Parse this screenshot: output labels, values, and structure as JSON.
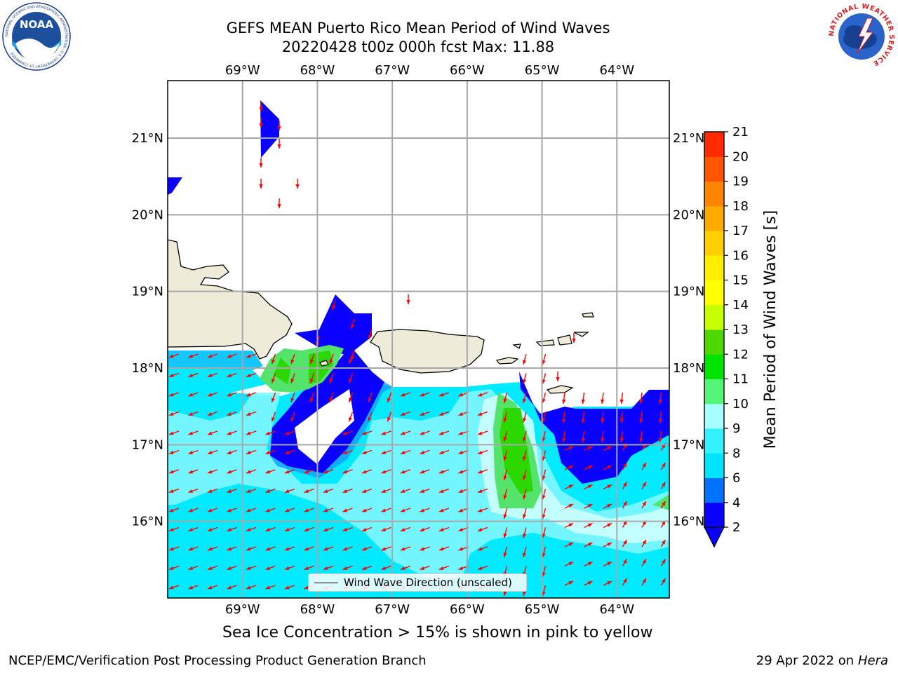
{
  "header": {
    "title_line1": "GEFS MEAN Puerto Rico Mean Period of Wind Waves",
    "title_line2": "20220428 t00z 000h fcst    Max: 11.88"
  },
  "logos": {
    "left": {
      "name": "NOAA",
      "text": "NOAA",
      "ring_text": "NATIONAL OCEANIC AND ATMOSPHERIC ADMINISTRATION · U.S. DEPARTMENT OF COMMERCE"
    },
    "right": {
      "name": "National Weather Service",
      "ring_text": "NATIONAL WEATHER SERVICE"
    }
  },
  "map": {
    "lon_labels": [
      "69°W",
      "68°W",
      "67°W",
      "66°W",
      "65°W",
      "64°W"
    ],
    "lat_labels": [
      "21°N",
      "20°N",
      "19°N",
      "18°N",
      "17°N",
      "16°N"
    ],
    "lon_values": [
      -69,
      -68,
      -67,
      -66,
      -65,
      -64
    ],
    "lat_values": [
      21,
      20,
      19,
      18,
      17,
      16
    ],
    "extent": {
      "lon_min": -70.0,
      "lon_max": -63.3,
      "lat_min": 15.0,
      "lat_max": 21.75
    },
    "legend_label": "Wind Wave Direction (unscaled)",
    "arrow_color": "#ff0000",
    "land_color": "#eeecd9"
  },
  "colorbar": {
    "label": "Mean Period of Wind Waves [s]",
    "ticks": [
      "2",
      "4",
      "6",
      "8",
      "9",
      "10",
      "11",
      "12",
      "13",
      "14",
      "15",
      "16",
      "17",
      "18",
      "19",
      "20",
      "21"
    ],
    "colors": [
      "#0a00ff",
      "#0073ff",
      "#00e5ff",
      "#33f2ff",
      "#a8ffff",
      "#54f578",
      "#00e300",
      "#4ed800",
      "#c8ff00",
      "#ffff00",
      "#ffee00",
      "#ffd000",
      "#ffaa00",
      "#ff8400",
      "#ff5400",
      "#ff2a00",
      "#ff0000"
    ],
    "under_color": "#0a00ff"
  },
  "notes": {
    "ice": "Sea Ice Concentration > 15% is shown in pink to yellow"
  },
  "footer": {
    "left": "NCEP/EMC/Verification Post Processing Product Generation Branch",
    "right_date": "29 Apr 2022 on",
    "right_host": "Hera"
  }
}
